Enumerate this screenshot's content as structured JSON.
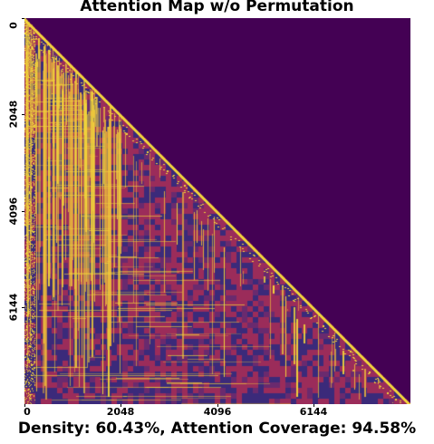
{
  "chart_data": {
    "type": "heatmap",
    "title": "Attention Map w/o Permutation",
    "xlabel": "",
    "ylabel": "",
    "x_range": [
      0,
      8192
    ],
    "y_range": [
      0,
      8192
    ],
    "x_ticks": [
      "0",
      "2048",
      "4096",
      "6144"
    ],
    "y_ticks": [
      "0",
      "2048",
      "4096",
      "6144"
    ],
    "mask": "causal lower-triangular",
    "colormap": "viridis-like (dark purple to yellow)",
    "colors": {
      "masked": "#440154",
      "low": "#3b2a7a",
      "mid": "#9b2c5a",
      "high": "#f2d43a"
    },
    "stats": {
      "density_percent": 60.43,
      "attention_coverage_percent": 94.58
    }
  },
  "caption": "Density: 60.43%, Attention Coverage: 94.58%"
}
